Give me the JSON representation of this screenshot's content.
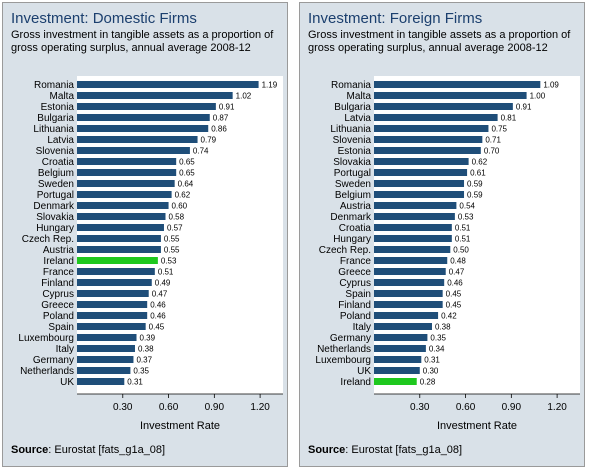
{
  "colors": {
    "bar": "#1f4e79",
    "highlight": "#1ec81e",
    "panel_bg": "#d9e1e8",
    "title": "#1b3f6e"
  },
  "chart_data": [
    {
      "type": "bar",
      "orientation": "horizontal",
      "title": "Investment: Domestic Firms",
      "subtitle": "Gross investment in tangible assets as a proportion of gross operating surplus, annual average 2008-12",
      "xlabel": "Investment Rate",
      "ylabel": "",
      "xlim": [
        0,
        1.35
      ],
      "ticks": [
        0.3,
        0.6,
        0.9,
        1.2
      ],
      "tick_labels": [
        "0.30",
        "0.60",
        "0.90",
        "1.20"
      ],
      "highlight": "Ireland",
      "grid": false,
      "categories": [
        "Romania",
        "Malta",
        "Estonia",
        "Bulgaria",
        "Lithuania",
        "Latvia",
        "Slovenia",
        "Croatia",
        "Belgium",
        "Sweden",
        "Portugal",
        "Denmark",
        "Slovakia",
        "Hungary",
        "Czech Rep.",
        "Austria",
        "Ireland",
        "France",
        "Finland",
        "Cyprus",
        "Greece",
        "Poland",
        "Spain",
        "Luxembourg",
        "Italy",
        "Germany",
        "Netherlands",
        "UK"
      ],
      "values": [
        1.19,
        1.02,
        0.91,
        0.87,
        0.86,
        0.79,
        0.74,
        0.65,
        0.65,
        0.64,
        0.62,
        0.6,
        0.58,
        0.57,
        0.55,
        0.55,
        0.53,
        0.51,
        0.49,
        0.47,
        0.46,
        0.46,
        0.45,
        0.39,
        0.38,
        0.37,
        0.35,
        0.31
      ],
      "source_label": "Source",
      "source_text": ": Eurostat [fats_g1a_08]"
    },
    {
      "type": "bar",
      "orientation": "horizontal",
      "title": "Investment: Foreign Firms",
      "subtitle": "Gross investment in tangible assets as a proportion of gross operating surplus, annual average 2008-12",
      "xlabel": "Investment Rate",
      "ylabel": "",
      "xlim": [
        0,
        1.35
      ],
      "ticks": [
        0.3,
        0.6,
        0.9,
        1.2
      ],
      "tick_labels": [
        "0.30",
        "0.60",
        "0.90",
        "1.20"
      ],
      "highlight": "Ireland",
      "grid": false,
      "categories": [
        "Romania",
        "Malta",
        "Bulgaria",
        "Latvia",
        "Lithuania",
        "Slovenia",
        "Estonia",
        "Slovakia",
        "Portugal",
        "Sweden",
        "Belgium",
        "Austria",
        "Denmark",
        "Croatia",
        "Hungary",
        "Czech Rep.",
        "France",
        "Greece",
        "Cyprus",
        "Spain",
        "Finland",
        "Poland",
        "Italy",
        "Germany",
        "Netherlands",
        "Luxembourg",
        "UK",
        "Ireland"
      ],
      "values": [
        1.09,
        1.0,
        0.91,
        0.81,
        0.75,
        0.71,
        0.7,
        0.62,
        0.61,
        0.59,
        0.59,
        0.54,
        0.53,
        0.51,
        0.51,
        0.5,
        0.48,
        0.47,
        0.46,
        0.45,
        0.45,
        0.42,
        0.38,
        0.35,
        0.34,
        0.31,
        0.3,
        0.28
      ],
      "source_label": "Source",
      "source_text": ": Eurostat [fats_g1a_08]"
    }
  ]
}
